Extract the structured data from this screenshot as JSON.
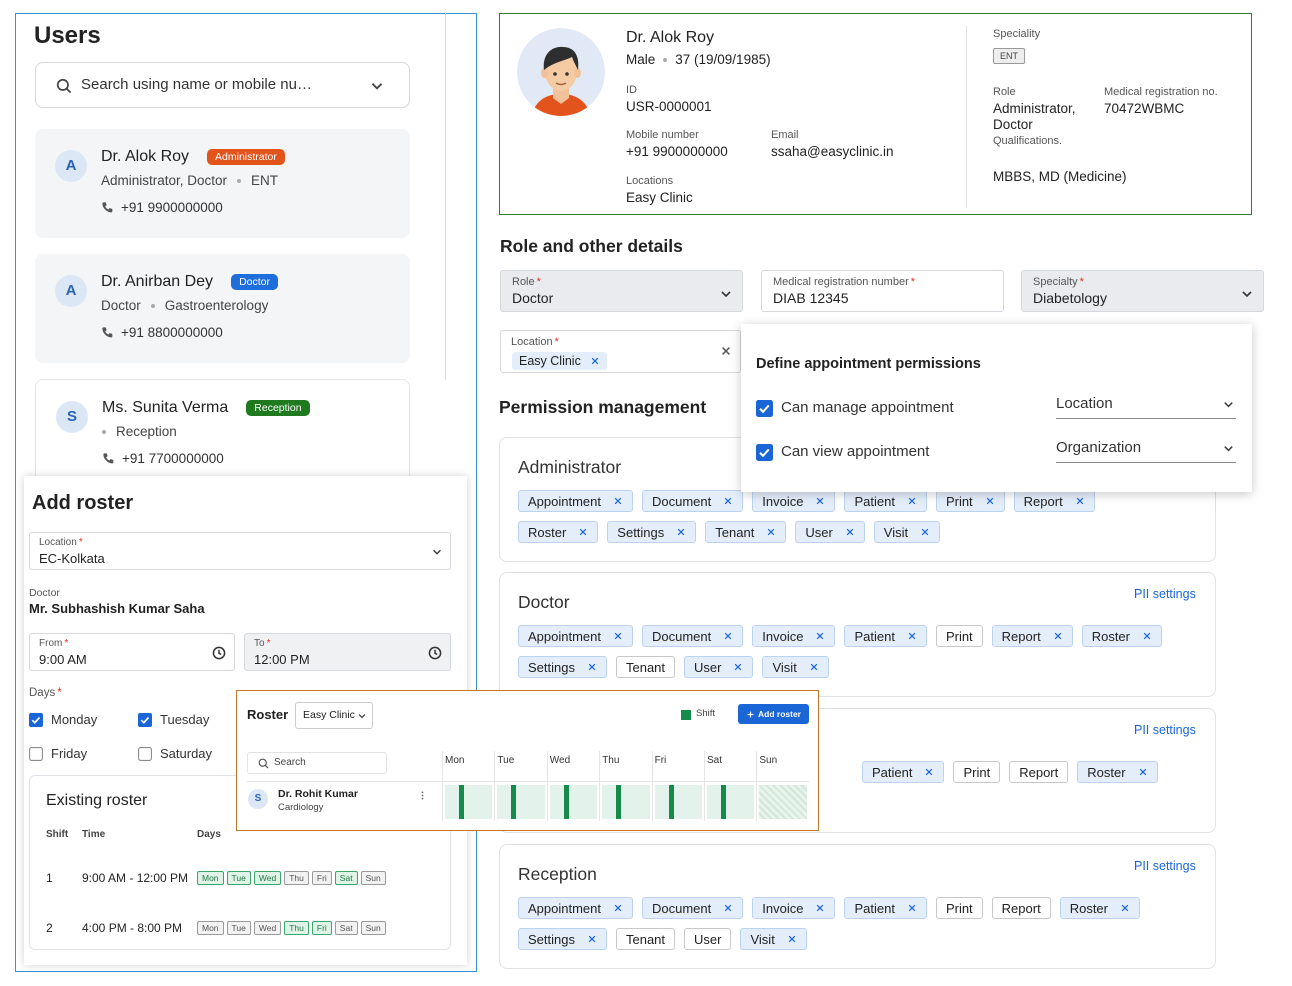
{
  "required_mark": "*",
  "users_panel": {
    "title": "Users",
    "search_placeholder": "Search using name or mobile nu…",
    "users": [
      {
        "initial": "A",
        "name": "Dr. Alok Roy",
        "badge": "Administrator",
        "roles": "Administrator, Doctor",
        "speciality": "ENT",
        "phone": "+91 9900000000"
      },
      {
        "initial": "A",
        "name": "Dr. Anirban Dey",
        "badge": "Doctor",
        "roles": "Doctor",
        "speciality": "Gastroenterology",
        "phone": "+91 8800000000"
      },
      {
        "initial": "S",
        "name": "Ms. Sunita Verma",
        "badge": "Reception",
        "speciality": "Reception",
        "phone": "+91 7700000000"
      }
    ]
  },
  "profile": {
    "name": "Dr. Alok Roy",
    "gender": "Male",
    "age": "37 (19/09/1985)",
    "id": {
      "label": "ID",
      "value": "USR-0000001"
    },
    "mobile": {
      "label": "Mobile number",
      "value": "+91 9900000000"
    },
    "email": {
      "label": "Email",
      "value": "ssaha@easyclinic.in"
    },
    "locations": {
      "label": "Locations",
      "value": "Easy Clinic"
    },
    "speciality": {
      "label": "Speciality",
      "value": "ENT"
    },
    "role": {
      "label": "Role",
      "value": "Administrator, Doctor"
    },
    "registration": {
      "label": "Medical registration no.",
      "value": "70472WBMC"
    },
    "qualifications": {
      "label": "Qualifications.",
      "value": "MBBS, MD (Medicine)"
    }
  },
  "role_details": {
    "title": "Role and other details",
    "fields": [
      {
        "label": "Role",
        "value": "Doctor"
      },
      {
        "label": "Medical registration number",
        "value": "DIAB 12345"
      },
      {
        "label": "Specialty",
        "value": "Diabetology"
      }
    ],
    "location": {
      "label": "Location",
      "chip": "Easy Clinic"
    }
  },
  "appointment_popup": {
    "title": "Define appointment permissions",
    "rows": [
      {
        "label": "Can manage appointment",
        "checked": true,
        "scope": "Location"
      },
      {
        "label": "Can view appointment",
        "checked": true,
        "scope": "Organization"
      }
    ]
  },
  "permissions": {
    "title": "Permission management",
    "groups": [
      {
        "name": "Administrator",
        "rows": [
          [
            {
              "label": "Appointment",
              "selected": true
            },
            {
              "label": "Document",
              "selected": true
            },
            {
              "label": "Invoice",
              "selected": true
            },
            {
              "label": "Patient",
              "selected": true
            },
            {
              "label": "Print",
              "selected": true
            },
            {
              "label": "Report",
              "selected": true
            }
          ],
          [
            {
              "label": "Roster",
              "selected": true
            },
            {
              "label": "Settings",
              "selected": true
            },
            {
              "label": "Tenant",
              "selected": true
            },
            {
              "label": "User",
              "selected": true
            },
            {
              "label": "Visit",
              "selected": true
            }
          ]
        ]
      },
      {
        "name": "Doctor",
        "pii": "PII settings",
        "rows": [
          [
            {
              "label": "Appointment",
              "selected": true
            },
            {
              "label": "Document",
              "selected": true
            },
            {
              "label": "Invoice",
              "selected": true
            },
            {
              "label": "Patient",
              "selected": true
            },
            {
              "label": "Print",
              "selected": false
            },
            {
              "label": "Report",
              "selected": true
            },
            {
              "label": "Roster",
              "selected": true
            }
          ],
          [
            {
              "label": "Settings",
              "selected": true
            },
            {
              "label": "Tenant",
              "selected": false
            },
            {
              "label": "User",
              "selected": true
            },
            {
              "label": "Visit",
              "selected": true
            }
          ]
        ]
      },
      {
        "pii": "PII settings",
        "rows": [
          [
            {
              "label": "Patient",
              "selected": true
            },
            {
              "label": "Print",
              "selected": false
            },
            {
              "label": "Report",
              "selected": false
            },
            {
              "label": "Roster",
              "selected": true
            }
          ]
        ]
      },
      {
        "name": "Reception",
        "pii": "PII settings",
        "rows": [
          [
            {
              "label": "Appointment",
              "selected": true
            },
            {
              "label": "Document",
              "selected": true
            },
            {
              "label": "Invoice",
              "selected": true
            },
            {
              "label": "Patient",
              "selected": true
            },
            {
              "label": "Print",
              "selected": false
            },
            {
              "label": "Report",
              "selected": false
            },
            {
              "label": "Roster",
              "selected": true
            }
          ],
          [
            {
              "label": "Settings",
              "selected": true
            },
            {
              "label": "Tenant",
              "selected": false
            },
            {
              "label": "User",
              "selected": false
            },
            {
              "label": "Visit",
              "selected": true
            }
          ]
        ]
      }
    ]
  },
  "add_roster": {
    "title": "Add roster",
    "location": {
      "label": "Location",
      "value": "EC-Kolkata"
    },
    "doctor": {
      "label": "Doctor",
      "value": "Mr. Subhashish Kumar Saha"
    },
    "from": {
      "label": "From",
      "value": "9:00 AM"
    },
    "to": {
      "label": "To",
      "value": "12:00 PM"
    },
    "days_label": "Days",
    "days": [
      {
        "name": "Monday",
        "checked": true
      },
      {
        "name": "Tuesday",
        "checked": true
      },
      {
        "name": "Friday",
        "checked": false
      },
      {
        "name": "Saturday",
        "checked": false
      }
    ],
    "existing": {
      "title": "Existing roster",
      "headers": [
        "Shift",
        "Time",
        "Days"
      ],
      "day_names": [
        "Mon",
        "Tue",
        "Wed",
        "Thu",
        "Fri",
        "Sat",
        "Sun"
      ],
      "rows": [
        {
          "shift": 1,
          "time": "9:00 AM - 12:00 PM",
          "active": [
            true,
            true,
            true,
            false,
            false,
            true,
            false
          ]
        },
        {
          "shift": 2,
          "time": "4:00 PM - 8:00 PM",
          "active": [
            false,
            false,
            false,
            true,
            true,
            false,
            false
          ]
        }
      ]
    }
  },
  "roster_widget": {
    "title": "Roster",
    "clinic": "Easy Clinic",
    "legend": "Shift",
    "add_button": "Add roster",
    "search_placeholder": "Search",
    "days": [
      "Mon",
      "Tue",
      "Wed",
      "Thu",
      "Fri",
      "Sat",
      "Sun"
    ],
    "staff": {
      "initial": "S",
      "name": "Dr. Rohit Kumar",
      "department": "Cardiology",
      "shifts": [
        true,
        true,
        true,
        true,
        true,
        true,
        false
      ]
    }
  }
}
